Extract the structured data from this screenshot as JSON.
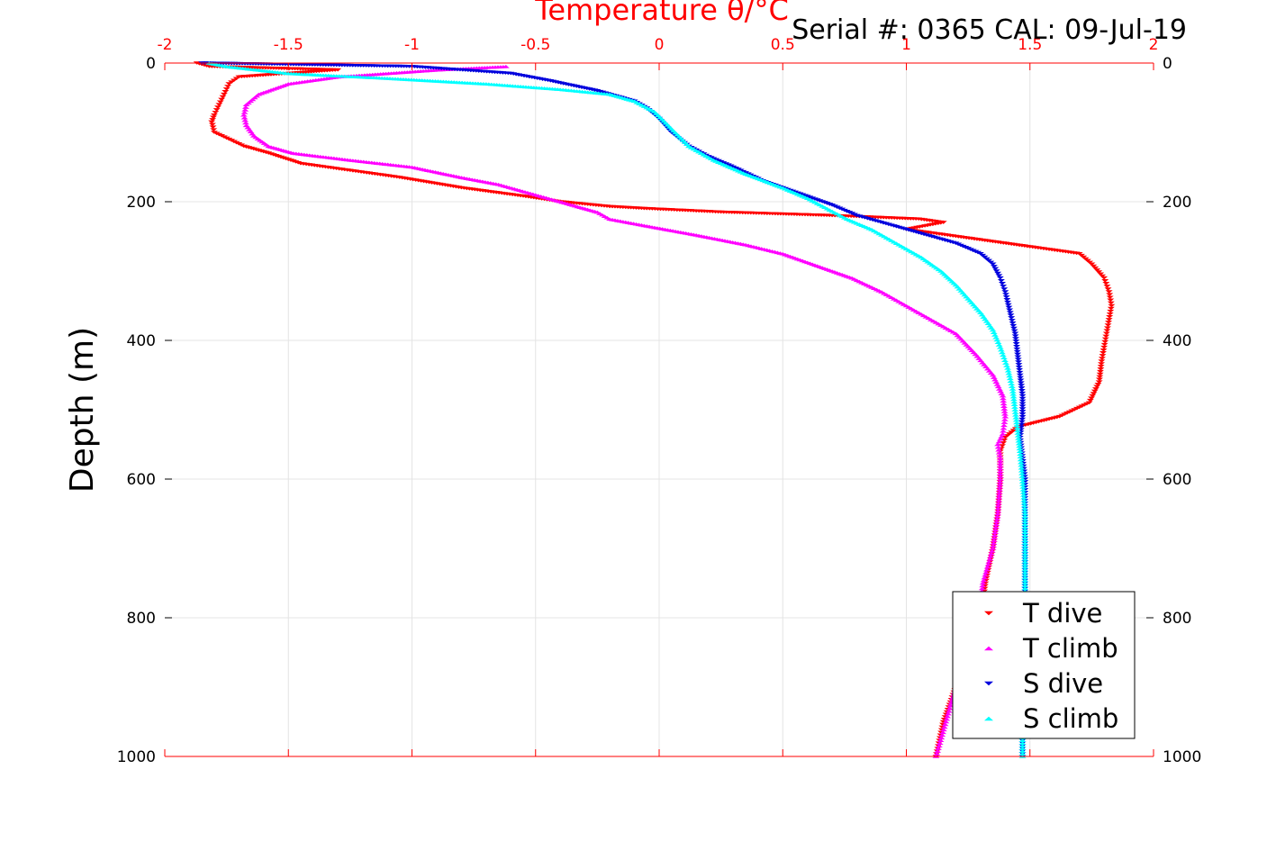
{
  "chart_data": {
    "type": "scatter",
    "title": "Temperature θ/°C",
    "annotation": "Serial #: 0365  CAL: 09-Jul-19",
    "xlabel": "Temperature θ/°C",
    "ylabel": "Depth (m)",
    "xlim": [
      -2,
      2
    ],
    "ylim": [
      0,
      1000
    ],
    "y_reversed": true,
    "x_ticks": [
      "-2",
      "-1.5",
      "-1",
      "-0.5",
      "0",
      "0.5",
      "1",
      "1.5",
      "2"
    ],
    "y_ticks": [
      "0",
      "200",
      "400",
      "600",
      "800",
      "1000"
    ],
    "grid": true,
    "legend_position": "bottom-right",
    "colors": {
      "t_dive": "#ff0000",
      "t_climb": "#ff00ff",
      "s_dive": "#0000dd",
      "s_climb": "#00ffff",
      "axis_top": "#ff0000"
    },
    "series": [
      {
        "name": "T dive",
        "marker": "triangle-down",
        "color": "#ff0000",
        "points": [
          [
            -1.87,
            0
          ],
          [
            -1.82,
            5
          ],
          [
            -1.3,
            10
          ],
          [
            -1.7,
            20
          ],
          [
            -1.74,
            30
          ],
          [
            -1.76,
            45
          ],
          [
            -1.78,
            60
          ],
          [
            -1.8,
            75
          ],
          [
            -1.81,
            85
          ],
          [
            -1.8,
            100
          ],
          [
            -1.74,
            110
          ],
          [
            -1.68,
            120
          ],
          [
            -1.58,
            130
          ],
          [
            -1.45,
            145
          ],
          [
            -1.25,
            155
          ],
          [
            -1.05,
            165
          ],
          [
            -0.8,
            180
          ],
          [
            -0.55,
            192
          ],
          [
            -0.4,
            200
          ],
          [
            -0.2,
            207
          ],
          [
            -0.05,
            210
          ],
          [
            0.25,
            215
          ],
          [
            0.7,
            220
          ],
          [
            1.05,
            225
          ],
          [
            1.15,
            230
          ],
          [
            1.0,
            240
          ],
          [
            1.2,
            250
          ],
          [
            1.5,
            265
          ],
          [
            1.7,
            275
          ],
          [
            1.75,
            290
          ],
          [
            1.8,
            310
          ],
          [
            1.82,
            330
          ],
          [
            1.83,
            350
          ],
          [
            1.82,
            370
          ],
          [
            1.81,
            390
          ],
          [
            1.8,
            410
          ],
          [
            1.79,
            430
          ],
          [
            1.78,
            460
          ],
          [
            1.74,
            490
          ],
          [
            1.62,
            510
          ],
          [
            1.45,
            525
          ],
          [
            1.4,
            540
          ],
          [
            1.38,
            560
          ],
          [
            1.38,
            600
          ],
          [
            1.37,
            650
          ],
          [
            1.35,
            700
          ],
          [
            1.32,
            750
          ],
          [
            1.3,
            800
          ],
          [
            1.25,
            850
          ],
          [
            1.2,
            900
          ],
          [
            1.15,
            950
          ],
          [
            1.12,
            1000
          ]
        ]
      },
      {
        "name": "T climb",
        "marker": "triangle-up",
        "color": "#ff00ff",
        "points": [
          [
            -0.62,
            5
          ],
          [
            -0.9,
            10
          ],
          [
            -1.3,
            20
          ],
          [
            -1.5,
            30
          ],
          [
            -1.62,
            45
          ],
          [
            -1.67,
            60
          ],
          [
            -1.68,
            75
          ],
          [
            -1.67,
            90
          ],
          [
            -1.64,
            105
          ],
          [
            -1.58,
            120
          ],
          [
            -1.48,
            130
          ],
          [
            -1.25,
            140
          ],
          [
            -1.0,
            150
          ],
          [
            -0.8,
            165
          ],
          [
            -0.65,
            175
          ],
          [
            -0.5,
            190
          ],
          [
            -0.35,
            205
          ],
          [
            -0.25,
            215
          ],
          [
            -0.2,
            225
          ],
          [
            -0.05,
            235
          ],
          [
            0.15,
            248
          ],
          [
            0.35,
            262
          ],
          [
            0.5,
            275
          ],
          [
            0.62,
            290
          ],
          [
            0.78,
            310
          ],
          [
            0.9,
            330
          ],
          [
            1.0,
            350
          ],
          [
            1.1,
            370
          ],
          [
            1.2,
            390
          ],
          [
            1.28,
            420
          ],
          [
            1.35,
            450
          ],
          [
            1.39,
            480
          ],
          [
            1.4,
            510
          ],
          [
            1.39,
            535
          ],
          [
            1.37,
            550
          ],
          [
            1.38,
            570
          ],
          [
            1.38,
            600
          ],
          [
            1.37,
            650
          ],
          [
            1.35,
            700
          ],
          [
            1.31,
            750
          ],
          [
            1.29,
            800
          ],
          [
            1.25,
            850
          ],
          [
            1.2,
            900
          ],
          [
            1.16,
            950
          ],
          [
            1.12,
            1000
          ]
        ]
      },
      {
        "name": "S dive",
        "marker": "triangle-down",
        "color": "#0000dd",
        "points": [
          [
            -1.85,
            0
          ],
          [
            -1.0,
            5
          ],
          [
            -0.6,
            15
          ],
          [
            -0.45,
            25
          ],
          [
            -0.25,
            40
          ],
          [
            -0.1,
            55
          ],
          [
            -0.05,
            65
          ],
          [
            0.0,
            80
          ],
          [
            0.05,
            100
          ],
          [
            0.12,
            120
          ],
          [
            0.2,
            135
          ],
          [
            0.3,
            150
          ],
          [
            0.42,
            170
          ],
          [
            0.58,
            190
          ],
          [
            0.7,
            205
          ],
          [
            0.8,
            220
          ],
          [
            0.95,
            235
          ],
          [
            1.05,
            245
          ],
          [
            1.2,
            260
          ],
          [
            1.3,
            275
          ],
          [
            1.35,
            290
          ],
          [
            1.38,
            310
          ],
          [
            1.4,
            330
          ],
          [
            1.42,
            360
          ],
          [
            1.44,
            390
          ],
          [
            1.45,
            420
          ],
          [
            1.46,
            450
          ],
          [
            1.47,
            480
          ],
          [
            1.47,
            510
          ],
          [
            1.46,
            540
          ],
          [
            1.47,
            570
          ],
          [
            1.48,
            600
          ],
          [
            1.48,
            650
          ],
          [
            1.48,
            700
          ],
          [
            1.48,
            750
          ],
          [
            1.48,
            800
          ],
          [
            1.48,
            850
          ],
          [
            1.47,
            900
          ],
          [
            1.47,
            950
          ],
          [
            1.47,
            1000
          ]
        ]
      },
      {
        "name": "S climb",
        "marker": "triangle-up",
        "color": "#00ffff",
        "points": [
          [
            -1.82,
            0
          ],
          [
            -1.75,
            5
          ],
          [
            -1.5,
            15
          ],
          [
            -1.1,
            22
          ],
          [
            -0.7,
            30
          ],
          [
            -0.4,
            38
          ],
          [
            -0.2,
            45
          ],
          [
            -0.1,
            55
          ],
          [
            -0.02,
            70
          ],
          [
            0.05,
            95
          ],
          [
            0.12,
            120
          ],
          [
            0.22,
            140
          ],
          [
            0.35,
            160
          ],
          [
            0.5,
            180
          ],
          [
            0.6,
            195
          ],
          [
            0.68,
            210
          ],
          [
            0.76,
            225
          ],
          [
            0.86,
            240
          ],
          [
            0.96,
            260
          ],
          [
            1.06,
            280
          ],
          [
            1.14,
            300
          ],
          [
            1.2,
            320
          ],
          [
            1.25,
            340
          ],
          [
            1.3,
            360
          ],
          [
            1.35,
            385
          ],
          [
            1.38,
            410
          ],
          [
            1.41,
            440
          ],
          [
            1.43,
            470
          ],
          [
            1.44,
            500
          ],
          [
            1.45,
            530
          ],
          [
            1.46,
            560
          ],
          [
            1.47,
            600
          ],
          [
            1.48,
            650
          ],
          [
            1.48,
            700
          ],
          [
            1.48,
            750
          ],
          [
            1.48,
            800
          ],
          [
            1.48,
            850
          ],
          [
            1.48,
            900
          ],
          [
            1.47,
            950
          ],
          [
            1.47,
            1000
          ]
        ]
      }
    ]
  }
}
